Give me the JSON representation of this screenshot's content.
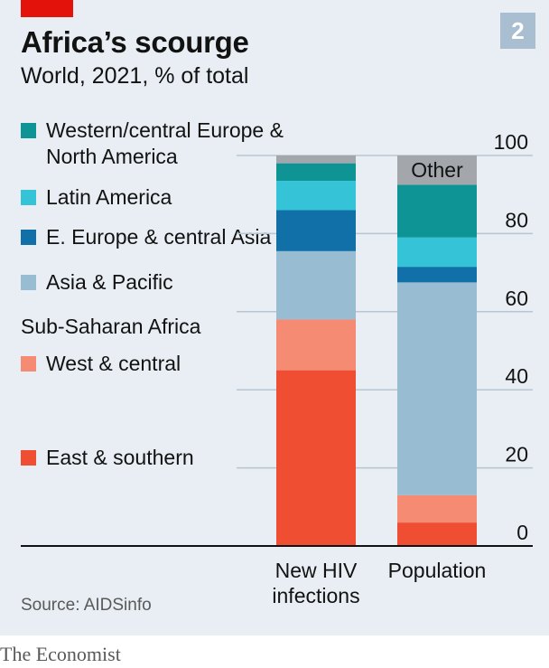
{
  "header": {
    "title": "Africa’s scourge",
    "subtitle": "World, 2021, % of total",
    "badge": "2"
  },
  "legend": {
    "items": [
      {
        "label": "Western/central Europe & North America",
        "color": "#0e9495"
      },
      {
        "label": "Latin America",
        "color": "#35c4d7"
      },
      {
        "label": "E. Europe & central Asia",
        "color": "#1270a8"
      },
      {
        "label": "Asia & Pacific",
        "color": "#98bdd3"
      }
    ],
    "group_heading": "Sub-Saharan Africa",
    "group_items": [
      {
        "label": "West & central",
        "color": "#f58b72"
      },
      {
        "label": "East & southern",
        "color": "#f04e33"
      }
    ]
  },
  "other_label": "Other",
  "footer": {
    "source": "Source: AIDSinfo",
    "brand": "The Economist"
  },
  "chart_data": {
    "type": "bar",
    "stacked": true,
    "categories": [
      "New HIV infections",
      "Population"
    ],
    "category_lines": [
      [
        "New HIV",
        "infections"
      ],
      [
        "Population"
      ]
    ],
    "series": [
      {
        "name": "East & southern",
        "color": "#f04e33",
        "values": [
          45,
          6
        ]
      },
      {
        "name": "West & central",
        "color": "#f58b72",
        "values": [
          13,
          7
        ]
      },
      {
        "name": "Asia & Pacific",
        "color": "#98bdd3",
        "values": [
          17.5,
          54.5
        ]
      },
      {
        "name": "E. Europe & central Asia",
        "color": "#1270a8",
        "values": [
          10.5,
          4
        ]
      },
      {
        "name": "Latin America",
        "color": "#35c4d7",
        "values": [
          7.5,
          7.5
        ]
      },
      {
        "name": "Western/central Europe & North America",
        "color": "#0e9495",
        "values": [
          4.5,
          13.5
        ]
      },
      {
        "name": "Other",
        "color": "#a3a7ab",
        "values": [
          2,
          7.5
        ]
      }
    ],
    "ylim": [
      0,
      100
    ],
    "yticks": [
      0,
      20,
      40,
      60,
      80,
      100
    ],
    "grid": true,
    "axis_side": "right"
  }
}
